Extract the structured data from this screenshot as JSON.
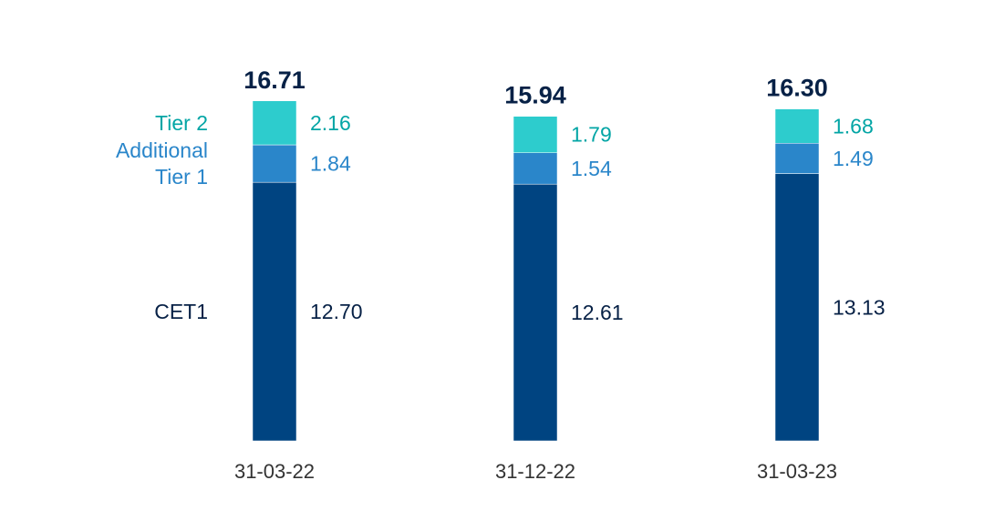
{
  "chart_data": {
    "type": "bar",
    "stacked": true,
    "categories": [
      "31-03-22",
      "31-12-22",
      "31-03-23"
    ],
    "totals": [
      "16.71",
      "15.94",
      "16.30"
    ],
    "series": [
      {
        "name": "CET1",
        "values": [
          12.7,
          12.61,
          13.13
        ],
        "labels": [
          "12.70",
          "12.61",
          "13.13"
        ],
        "color": "#004481",
        "label_color": "#072146"
      },
      {
        "name": "Additional Tier 1",
        "name_lines": [
          "Additional",
          "Tier 1"
        ],
        "values": [
          1.84,
          1.54,
          1.49
        ],
        "labels": [
          "1.84",
          "1.54",
          "1.49"
        ],
        "color": "#2a86ca",
        "label_color": "#2a86ca"
      },
      {
        "name": "Tier 2",
        "values": [
          2.16,
          1.79,
          1.68
        ],
        "labels": [
          "2.16",
          "1.79",
          "1.68"
        ],
        "color": "#2dcccd",
        "label_color": "#02a5a5"
      }
    ],
    "total_color": "#072146",
    "tick_color": "#333333",
    "grid": false,
    "legend": "left"
  }
}
